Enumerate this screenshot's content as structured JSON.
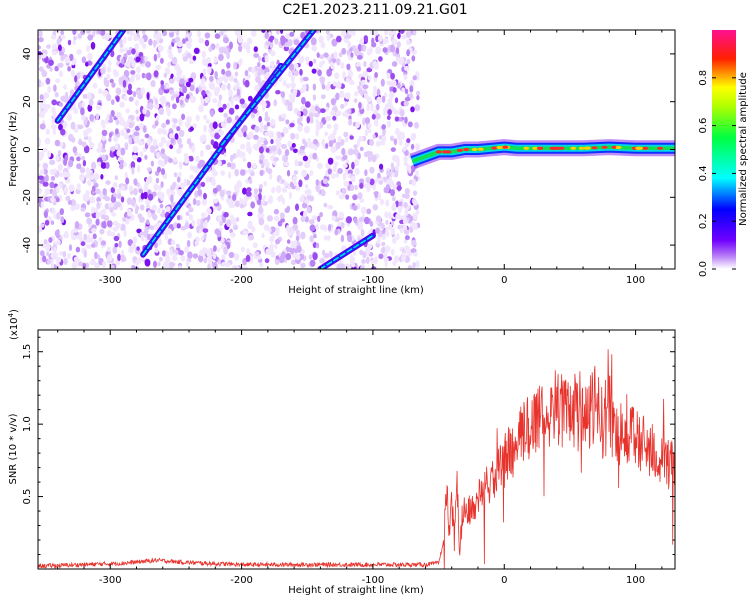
{
  "figure": {
    "title": "C2E1.2023.211.09.21.G01"
  },
  "chart_data": [
    {
      "type": "heatmap",
      "xlabel": "Height of straight line (km)",
      "ylabel": "Frequency (Hz)",
      "xlim": [
        -355,
        130
      ],
      "ylim": [
        -50,
        50
      ],
      "xticks": [
        -300,
        -200,
        -100,
        0,
        100
      ],
      "yticks": [
        -40,
        -20,
        0,
        20,
        40
      ],
      "colorbar": {
        "label": "Normalized spectral amplitude",
        "range": [
          0.0,
          1.0
        ],
        "ticks": [
          0.0,
          0.2,
          0.4,
          0.6,
          0.8
        ],
        "colormap": "rainbow (white-violet-blue-cyan-green-yellow-red-magenta)"
      },
      "noise_region_x": [
        -355,
        -70
      ],
      "signal_band": {
        "x": [
          -70,
          -60,
          -50,
          -40,
          -30,
          -20,
          -10,
          0,
          10,
          20,
          40,
          60,
          80,
          100,
          120,
          130
        ],
        "freq": [
          -5,
          -3,
          -1,
          -1,
          0,
          0,
          0.5,
          1,
          0.5,
          0.5,
          0.5,
          0.5,
          1,
          0.5,
          0.5,
          0.5
        ]
      },
      "diagonal_streaks": [
        {
          "x": [
            -340,
            -290
          ],
          "freq": [
            12,
            50
          ]
        },
        {
          "x": [
            -275,
            -170
          ],
          "freq": [
            -44,
            35
          ]
        },
        {
          "x": [
            -215,
            -145
          ],
          "freq": [
            2,
            50
          ]
        },
        {
          "x": [
            -140,
            -100
          ],
          "freq": [
            -50,
            -36
          ]
        }
      ]
    },
    {
      "type": "line",
      "xlabel": "Height of straight line (km)",
      "ylabel": "SNR (10 * v/v)",
      "multiplier_label": "(x10",
      "multiplier_exponent": "4",
      "multiplier_close": ")",
      "xlim": [
        -355,
        130
      ],
      "ylim": [
        0,
        1.65
      ],
      "xticks": [
        -300,
        -200,
        -100,
        0,
        100
      ],
      "yticks": [
        0.5,
        1.0,
        1.5
      ],
      "ytick_labels": [
        "0.5",
        "1.0",
        "1.5"
      ],
      "series": [
        {
          "color": "#e8332d",
          "x": [
            -355,
            -320,
            -290,
            -265,
            -250,
            -230,
            -200,
            -160,
            -120,
            -90,
            -60,
            -50,
            -46,
            -44,
            -42,
            -40,
            -38,
            -36,
            -34,
            -32,
            -30,
            -25,
            -20,
            -15,
            -10,
            -5,
            0,
            5,
            10,
            15,
            20,
            25,
            30,
            35,
            40,
            45,
            50,
            55,
            60,
            65,
            70,
            75,
            80,
            85,
            90,
            95,
            100,
            105,
            110,
            115,
            120,
            125,
            130
          ],
          "values": [
            0.02,
            0.03,
            0.04,
            0.06,
            0.05,
            0.04,
            0.03,
            0.03,
            0.03,
            0.03,
            0.03,
            0.04,
            0.2,
            0.55,
            0.3,
            0.45,
            0.2,
            0.6,
            0.15,
            0.35,
            0.45,
            0.4,
            0.5,
            0.55,
            0.6,
            0.65,
            0.75,
            0.8,
            0.85,
            0.95,
            1.0,
            1.05,
            1.1,
            1.1,
            1.12,
            1.1,
            1.05,
            1.08,
            1.1,
            1.05,
            1.15,
            1.0,
            1.1,
            0.95,
            0.98,
            0.95,
            0.9,
            0.85,
            0.85,
            0.8,
            0.75,
            0.72,
            0.7
          ]
        }
      ]
    }
  ]
}
